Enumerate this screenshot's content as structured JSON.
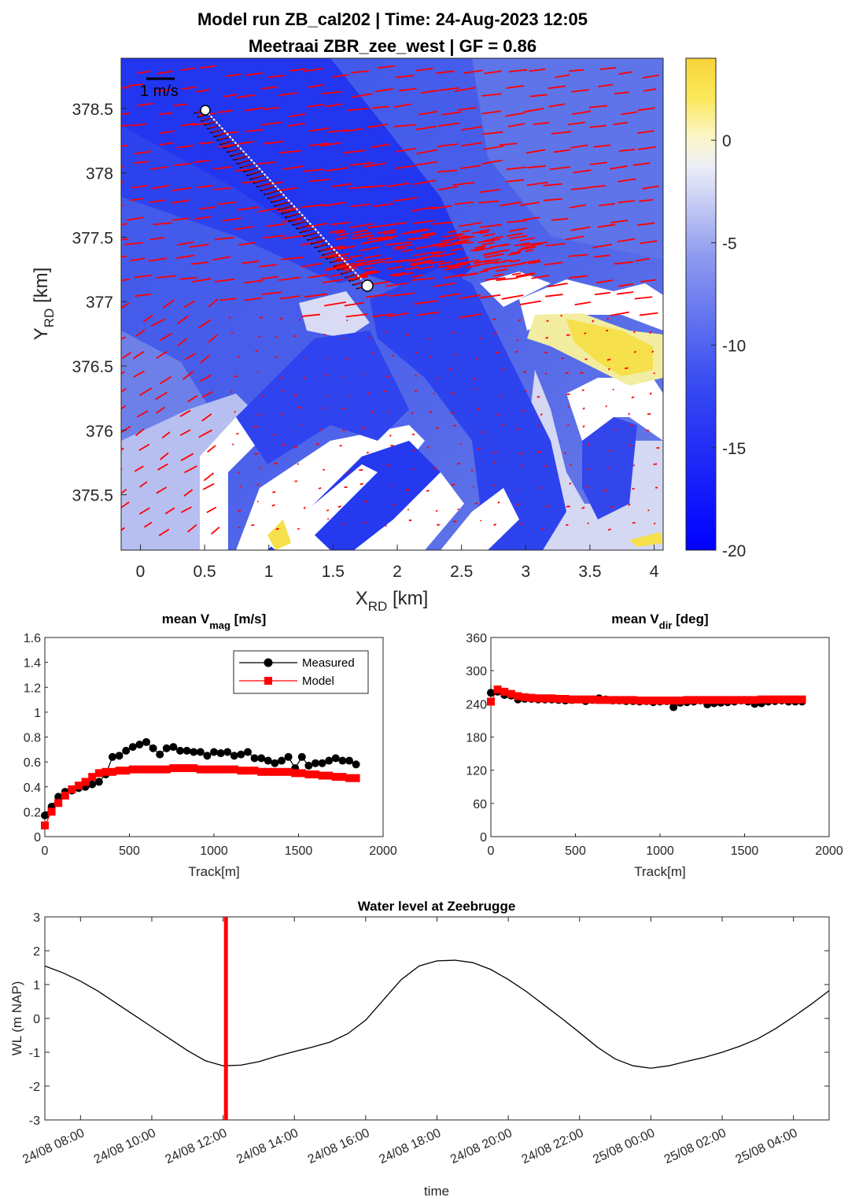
{
  "figure": {
    "title_line1": "Model run ZB_cal202 | Time: 24-Aug-2023 12:05",
    "title_line2": "Meetraai ZBR_zee_west | GF = 0.86"
  },
  "map": {
    "xlabel": "X",
    "xlabel_sub": "RD",
    "xlabel_unit": " [km]",
    "ylabel": "Y",
    "ylabel_sub": "RD",
    "ylabel_unit": " [km]",
    "xticks": [
      "0",
      "0.5",
      "1",
      "1.5",
      "2",
      "2.5",
      "3",
      "3.5",
      "4"
    ],
    "yticks": [
      "378.5",
      "378",
      "377.5",
      "377",
      "376.5",
      "376",
      "375.5"
    ],
    "scale_label": "1 m/s",
    "colorbar_ticks": [
      "0",
      "-5",
      "-10",
      "-15",
      "-20"
    ],
    "colorbar_range": [
      -20,
      4
    ],
    "colors": {
      "deep": "#0b24f0",
      "mid": "#4a62ec",
      "shallow": "#c9cdf2",
      "land": "#ffffff",
      "positive": "#f7e04a",
      "vector_model": "#ff0000",
      "vector_measured": "#000000"
    }
  },
  "chart_data": [
    {
      "type": "scatter",
      "title": "mean V",
      "title_sub": "mag",
      "title_unit": " [m/s]",
      "xlabel": "Track[m]",
      "ylabel": "",
      "xlim": [
        0,
        2000
      ],
      "ylim": [
        0,
        1.6
      ],
      "xticks": [
        "0",
        "500",
        "1000",
        "1500",
        "2000"
      ],
      "yticks": [
        "0",
        "0.2",
        "0.4",
        "0.6",
        "0.8",
        "1",
        "1.2",
        "1.4",
        "1.6"
      ],
      "legend_position": "top-right",
      "series": [
        {
          "name": "Measured",
          "color": "#000000",
          "marker": "circle",
          "x": [
            0,
            40,
            80,
            120,
            160,
            200,
            240,
            280,
            320,
            360,
            400,
            440,
            480,
            520,
            560,
            600,
            640,
            680,
            720,
            760,
            800,
            840,
            880,
            920,
            960,
            1000,
            1040,
            1080,
            1120,
            1160,
            1200,
            1240,
            1280,
            1320,
            1360,
            1400,
            1440,
            1480,
            1520,
            1560,
            1600,
            1640,
            1680,
            1720,
            1760,
            1800,
            1840
          ],
          "y": [
            0.17,
            0.24,
            0.32,
            0.36,
            0.37,
            0.39,
            0.4,
            0.42,
            0.44,
            0.5,
            0.64,
            0.65,
            0.69,
            0.72,
            0.74,
            0.76,
            0.71,
            0.66,
            0.71,
            0.72,
            0.69,
            0.69,
            0.68,
            0.68,
            0.65,
            0.68,
            0.67,
            0.68,
            0.65,
            0.66,
            0.68,
            0.63,
            0.63,
            0.61,
            0.59,
            0.61,
            0.64,
            0.55,
            0.64,
            0.57,
            0.59,
            0.59,
            0.61,
            0.63,
            0.61,
            0.61,
            0.58
          ]
        },
        {
          "name": "Model",
          "color": "#ff0000",
          "marker": "square",
          "x": [
            0,
            40,
            80,
            120,
            160,
            200,
            240,
            280,
            320,
            360,
            400,
            440,
            480,
            520,
            560,
            600,
            640,
            680,
            720,
            760,
            800,
            840,
            880,
            920,
            960,
            1000,
            1040,
            1080,
            1120,
            1160,
            1200,
            1240,
            1280,
            1320,
            1360,
            1400,
            1440,
            1480,
            1520,
            1560,
            1600,
            1640,
            1680,
            1720,
            1760,
            1800,
            1840
          ],
          "y": [
            0.09,
            0.2,
            0.27,
            0.33,
            0.38,
            0.41,
            0.44,
            0.48,
            0.51,
            0.52,
            0.52,
            0.53,
            0.53,
            0.54,
            0.54,
            0.54,
            0.54,
            0.54,
            0.54,
            0.55,
            0.55,
            0.55,
            0.55,
            0.54,
            0.54,
            0.54,
            0.54,
            0.54,
            0.54,
            0.53,
            0.53,
            0.53,
            0.52,
            0.52,
            0.52,
            0.52,
            0.52,
            0.51,
            0.51,
            0.5,
            0.5,
            0.49,
            0.49,
            0.48,
            0.48,
            0.47,
            0.47
          ]
        }
      ]
    },
    {
      "type": "scatter",
      "title": "mean V",
      "title_sub": "dir",
      "title_unit": " [deg]",
      "xlabel": "Track[m]",
      "ylabel": "",
      "xlim": [
        0,
        2000
      ],
      "ylim": [
        0,
        360
      ],
      "xticks": [
        "0",
        "500",
        "1000",
        "1500",
        "2000"
      ],
      "yticks": [
        "0",
        "60",
        "120",
        "180",
        "240",
        "300",
        "360"
      ],
      "series": [
        {
          "name": "Measured",
          "color": "#000000",
          "marker": "circle",
          "x": [
            0,
            40,
            80,
            120,
            160,
            200,
            240,
            280,
            320,
            360,
            400,
            440,
            480,
            520,
            560,
            600,
            640,
            680,
            720,
            760,
            800,
            840,
            880,
            920,
            960,
            1000,
            1040,
            1080,
            1120,
            1160,
            1200,
            1240,
            1280,
            1320,
            1360,
            1400,
            1440,
            1480,
            1520,
            1560,
            1600,
            1640,
            1680,
            1720,
            1760,
            1800,
            1840
          ],
          "y": [
            260,
            262,
            256,
            255,
            248,
            249,
            249,
            248,
            248,
            248,
            247,
            246,
            247,
            248,
            245,
            247,
            250,
            248,
            246,
            246,
            245,
            245,
            244,
            245,
            243,
            244,
            245,
            234,
            242,
            243,
            244,
            246,
            239,
            241,
            242,
            243,
            244,
            246,
            244,
            240,
            241,
            244,
            245,
            246,
            244,
            244,
            244
          ]
        },
        {
          "name": "Model",
          "color": "#ff0000",
          "marker": "square",
          "x": [
            0,
            40,
            80,
            120,
            160,
            200,
            240,
            280,
            320,
            360,
            400,
            440,
            480,
            520,
            560,
            600,
            640,
            680,
            720,
            760,
            800,
            840,
            880,
            920,
            960,
            1000,
            1040,
            1080,
            1120,
            1160,
            1200,
            1240,
            1280,
            1320,
            1360,
            1400,
            1440,
            1480,
            1520,
            1560,
            1600,
            1640,
            1680,
            1720,
            1760,
            1800,
            1840
          ],
          "y": [
            244,
            266,
            262,
            258,
            254,
            252,
            251,
            250,
            250,
            250,
            249,
            249,
            248,
            248,
            248,
            248,
            247,
            247,
            247,
            247,
            247,
            247,
            246,
            246,
            246,
            246,
            246,
            246,
            246,
            247,
            247,
            247,
            247,
            247,
            247,
            247,
            247,
            247,
            247,
            247,
            248,
            248,
            248,
            248,
            248,
            248,
            248
          ]
        }
      ]
    },
    {
      "type": "line",
      "title": "Water level at Zeebrugge",
      "xlabel": "time",
      "ylabel": "WL (m NAP)",
      "ylim": [
        -3,
        3
      ],
      "x_unit": "hours after 24/08 07:00",
      "xlim": [
        0,
        22
      ],
      "xtick_labels": [
        "24/08 08:00",
        "24/08 10:00",
        "24/08 12:00",
        "24/08 14:00",
        "24/08 16:00",
        "24/08 18:00",
        "24/08 20:00",
        "24/08 22:00",
        "25/08 00:00",
        "25/08 02:00",
        "25/08 04:00"
      ],
      "xtick_hours": [
        1,
        3,
        5,
        7,
        9,
        11,
        13,
        15,
        17,
        19,
        21
      ],
      "yticks": [
        "-3",
        "-2",
        "-1",
        "0",
        "1",
        "2",
        "3"
      ],
      "marker_time": "24/08 12:05",
      "marker_hour": 5.08,
      "marker_color": "#ff0000",
      "series": [
        {
          "name": "WL",
          "color": "#000000",
          "x": [
            0,
            0.5,
            1,
            1.5,
            2,
            2.5,
            3,
            3.5,
            4,
            4.5,
            5,
            5.5,
            6,
            6.5,
            7,
            7.5,
            8,
            8.5,
            9,
            9.5,
            10,
            10.5,
            11,
            11.5,
            12,
            12.5,
            13,
            13.5,
            14,
            14.5,
            15,
            15.5,
            16,
            16.5,
            17,
            17.5,
            18,
            18.5,
            19,
            19.5,
            20,
            20.5,
            21,
            21.5,
            22
          ],
          "y": [
            1.55,
            1.35,
            1.1,
            0.8,
            0.45,
            0.1,
            -0.25,
            -0.6,
            -0.95,
            -1.25,
            -1.4,
            -1.38,
            -1.28,
            -1.12,
            -0.98,
            -0.85,
            -0.7,
            -0.45,
            -0.05,
            0.55,
            1.15,
            1.55,
            1.7,
            1.72,
            1.65,
            1.45,
            1.15,
            0.8,
            0.4,
            0.0,
            -0.42,
            -0.85,
            -1.2,
            -1.4,
            -1.47,
            -1.4,
            -1.27,
            -1.15,
            -1.0,
            -0.82,
            -0.6,
            -0.3,
            0.05,
            0.42,
            0.82
          ]
        }
      ]
    }
  ]
}
